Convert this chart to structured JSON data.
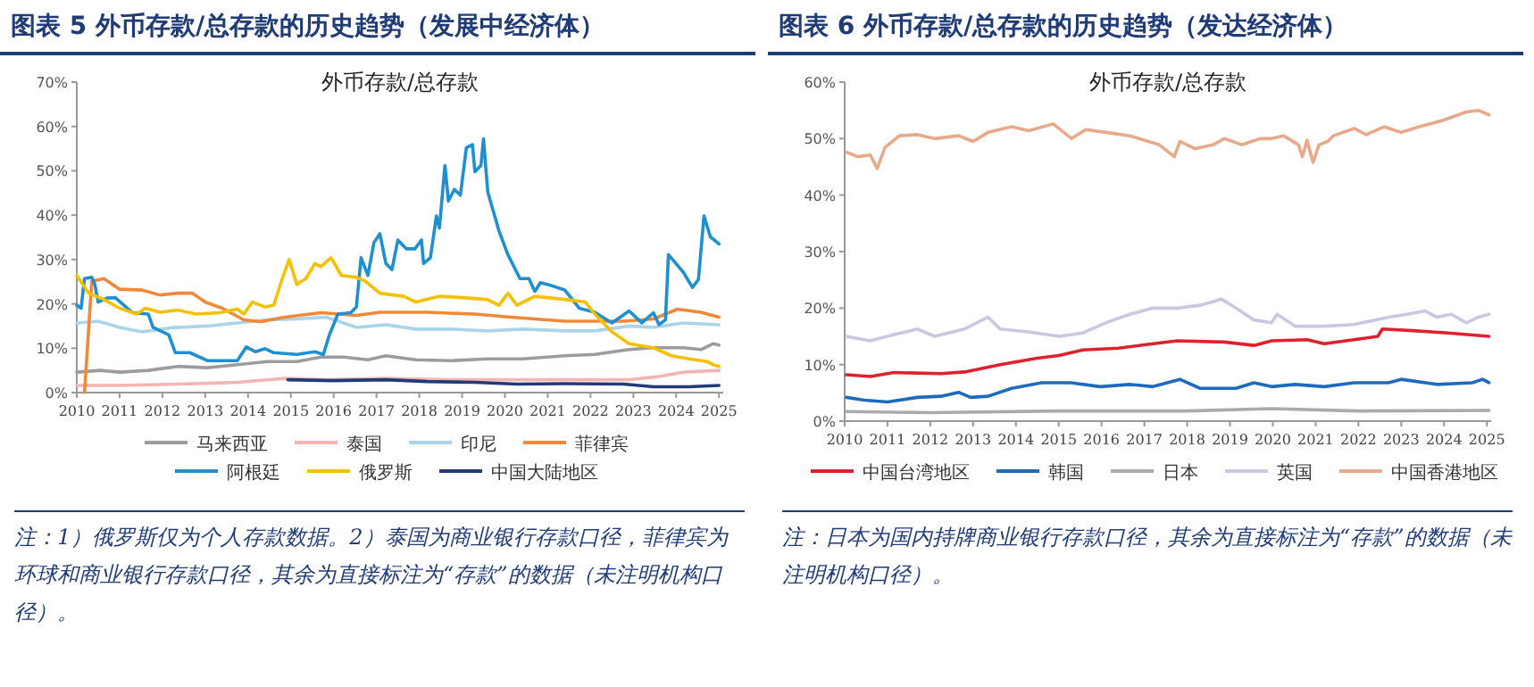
{
  "chart_data": [
    {
      "type": "line",
      "title": "图表 5   外币存款/总存款的历史趋势（发展中经济体）",
      "subtitle": "外币存款/总存款",
      "xlim": [
        2010,
        2025.1
      ],
      "xticks": [
        2010,
        2011,
        2012,
        2013,
        2014,
        2015,
        2016,
        2017,
        2018,
        2019,
        2020,
        2021,
        2022,
        2023,
        2024,
        2025
      ],
      "ylim": [
        0,
        70
      ],
      "yticks": [
        {
          "value": 0,
          "label": "0%"
        },
        {
          "value": 10,
          "label": "10%"
        },
        {
          "value": 20,
          "label": "20%"
        },
        {
          "value": 30,
          "label": "30%"
        },
        {
          "value": 40,
          "label": "40%"
        },
        {
          "value": 50,
          "label": "50%"
        },
        {
          "value": 60,
          "label": "60%"
        },
        {
          "value": 70,
          "label": "70%"
        }
      ],
      "legend": "bottom",
      "annotations": [
        "注：1）俄罗斯仅为个人存款数据。2）泰国为商业银行存款口径，菲律宾为环球和商业银行存款口径，其余为直接标注为“存款”的数据（未注明机构口径）。"
      ],
      "series": [
        {
          "name": "马来西亚",
          "color": "#9c9c9c",
          "x": [
            2010,
            2010.55,
            2011,
            2011.67,
            2012.36,
            2013.05,
            2013.75,
            2014.45,
            2015.14,
            2015.7,
            2016.25,
            2016.8,
            2017.22,
            2017.92,
            2018.75,
            2019.58,
            2020.42,
            2021.4,
            2022.1,
            2022.9,
            2023.47,
            2024.17,
            2024.58,
            2024.86,
            2025
          ],
          "values": [
            4.6,
            5,
            4.6,
            5,
            5.9,
            5.6,
            6.3,
            7,
            7,
            8,
            8,
            7.4,
            8.3,
            7.4,
            7.2,
            7.6,
            7.6,
            8.3,
            8.6,
            9.7,
            10.1,
            10.1,
            9.7,
            11,
            10.7
          ]
        },
        {
          "name": "泰国",
          "color": "#f4b4b4",
          "x": [
            2010,
            2011,
            2012.36,
            2013.75,
            2014.86,
            2015.83,
            2017.22,
            2018.6,
            2020,
            2021.4,
            2022.9,
            2023.6,
            2024.17,
            2025
          ],
          "values": [
            1.6,
            1.6,
            1.9,
            2.3,
            3.2,
            2.9,
            3.2,
            2.9,
            2.9,
            2.9,
            2.9,
            3.6,
            4.6,
            5
          ]
        },
        {
          "name": "印尼",
          "color": "#a9d4ea",
          "x": [
            2010,
            2010.5,
            2011,
            2011.53,
            2012.2,
            2013.05,
            2013.75,
            2014.45,
            2015.14,
            2015.83,
            2016.53,
            2017.22,
            2017.92,
            2018.75,
            2019.58,
            2020.42,
            2021.4,
            2022.1,
            2022.9,
            2023.47,
            2024.17,
            2025
          ],
          "values": [
            15.7,
            16.1,
            14.7,
            13.7,
            14.6,
            15,
            15.7,
            16.4,
            16.6,
            17,
            14.7,
            15.3,
            14.3,
            14.3,
            13.9,
            14.3,
            13.9,
            13.9,
            15,
            14.7,
            15.7,
            15.3
          ]
        },
        {
          "name": "菲律宾",
          "color": "#f0883a",
          "x": [
            2010.18,
            2010.35,
            2010.63,
            2011,
            2011.53,
            2011.94,
            2012.36,
            2012.7,
            2013,
            2013.4,
            2013.9,
            2014.3,
            2014.86,
            2015.7,
            2016.53,
            2017.08,
            2018.19,
            2019.3,
            2020.14,
            2021.4,
            2022.78,
            2023.47,
            2024.03,
            2024.58,
            2025
          ],
          "values": [
            0,
            25.1,
            25.7,
            23.3,
            23.1,
            22,
            22.4,
            22.4,
            20.4,
            19,
            16.4,
            16,
            17,
            18,
            17.4,
            18.1,
            18.1,
            17.7,
            17,
            16.1,
            16.1,
            16.6,
            18.8,
            18.1,
            17
          ]
        },
        {
          "name": "阿根廷",
          "color": "#1f8fd0",
          "x": [
            2010,
            2010.1,
            2010.18,
            2010.35,
            2010.42,
            2010.5,
            2010.7,
            2010.9,
            2011.1,
            2011.3,
            2011.67,
            2011.78,
            2012.15,
            2012.3,
            2012.64,
            2013.05,
            2013.75,
            2013.96,
            2014.17,
            2014.4,
            2014.6,
            2015.14,
            2015.56,
            2015.76,
            2015.9,
            2016.1,
            2016.4,
            2016.53,
            2016.64,
            2016.8,
            2016.94,
            2017.08,
            2017.22,
            2017.36,
            2017.5,
            2017.7,
            2017.9,
            2018.05,
            2018.1,
            2018.26,
            2018.4,
            2018.47,
            2018.6,
            2018.68,
            2018.82,
            2018.96,
            2019.1,
            2019.24,
            2019.3,
            2019.44,
            2019.5,
            2019.6,
            2019.86,
            2020.07,
            2020.35,
            2020.56,
            2020.7,
            2020.83,
            2021.1,
            2021.4,
            2021.74,
            2022.1,
            2022.5,
            2022.9,
            2023.2,
            2023.47,
            2023.6,
            2023.75,
            2023.82,
            2024.17,
            2024.38,
            2024.52,
            2024.65,
            2024.8,
            2025
          ],
          "values": [
            19.7,
            19,
            25.7,
            26,
            24.4,
            20.4,
            21.3,
            21.4,
            19.7,
            18,
            17.7,
            14.7,
            13,
            9,
            9,
            7.2,
            7.2,
            10.3,
            9.2,
            9.9,
            9,
            8.6,
            9.2,
            8.6,
            13,
            17.7,
            18,
            19.3,
            30.4,
            26.4,
            33.8,
            35.8,
            29.1,
            27.7,
            34.4,
            32.4,
            32.4,
            34.4,
            29.1,
            30.4,
            39.8,
            37.1,
            51.2,
            43.2,
            45.8,
            44.5,
            55.2,
            55.9,
            49.8,
            51.2,
            57.2,
            45.2,
            36.5,
            31.1,
            25.7,
            25.7,
            22.8,
            24.8,
            24.1,
            23.1,
            19,
            18.1,
            15.7,
            18.4,
            15.7,
            18,
            15.3,
            16.4,
            31.1,
            27.1,
            23.7,
            25.5,
            39.8,
            35.1,
            33.5
          ]
        },
        {
          "name": "俄罗斯",
          "color": "#f5c000",
          "x": [
            2010,
            2010.28,
            2010.63,
            2011,
            2011.4,
            2011.6,
            2011.94,
            2012.36,
            2012.78,
            2013.33,
            2013.75,
            2013.9,
            2014.1,
            2014.4,
            2014.6,
            2014.8,
            2014.96,
            2015.14,
            2015.35,
            2015.56,
            2015.7,
            2015.94,
            2016.18,
            2016.53,
            2016.74,
            2017.08,
            2017.64,
            2017.92,
            2018.47,
            2019.03,
            2019.58,
            2019.86,
            2020.07,
            2020.28,
            2020.7,
            2021.4,
            2021.88,
            2022.1,
            2022.5,
            2022.9,
            2023.47,
            2023.89,
            2024.3,
            2024.72,
            2024.86,
            2025
          ],
          "values": [
            26.4,
            22.4,
            21,
            19,
            17.7,
            19,
            18.1,
            18.6,
            17.7,
            18,
            18.8,
            17.7,
            20.4,
            19.3,
            19.7,
            25.7,
            30,
            24.4,
            25.7,
            29.1,
            28.4,
            30.4,
            26.4,
            26,
            25.1,
            22.4,
            21.7,
            20.4,
            21.7,
            21.4,
            21,
            19.7,
            22.4,
            19.7,
            21.7,
            21,
            20.4,
            17.7,
            13.7,
            11,
            10.1,
            8.3,
            7.6,
            7,
            6.3,
            5.9
          ]
        },
        {
          "name": "中国大陆地区",
          "color": "#1f3c77",
          "x": [
            2014.93,
            2015.97,
            2017.22,
            2018.19,
            2019.3,
            2020.28,
            2021.4,
            2022.78,
            2023.47,
            2024.3,
            2025
          ],
          "values": [
            2.9,
            2.7,
            2.9,
            2.5,
            2.3,
            1.9,
            2,
            1.9,
            1.3,
            1.3,
            1.6
          ]
        }
      ]
    },
    {
      "type": "line",
      "title": "图表 6   外币存款/总存款的历史趋势（发达经济体）",
      "subtitle": "外币存款/总存款",
      "xlim": [
        2010,
        2025.1
      ],
      "xticks": [
        2010,
        2011,
        2012,
        2013,
        2014,
        2015,
        2016,
        2017,
        2018,
        2019,
        2020,
        2021,
        2022,
        2023,
        2024,
        2025
      ],
      "ylim": [
        0,
        60
      ],
      "yticks": [
        {
          "value": 0,
          "label": "0%"
        },
        {
          "value": 10,
          "label": "10%"
        },
        {
          "value": 20,
          "label": "20%"
        },
        {
          "value": 30,
          "label": "30%"
        },
        {
          "value": 40,
          "label": "40%"
        },
        {
          "value": 50,
          "label": "50%"
        },
        {
          "value": 60,
          "label": "60%"
        }
      ],
      "legend": "bottom",
      "annotations": [
        "注：日本为国内持牌商业银行存款口径，其余为直接标注为“存款”的数据（未注明机构口径）。"
      ],
      "series": [
        {
          "name": "中国台湾地区",
          "color": "#e0202c",
          "x": [
            2010.04,
            2010.6,
            2011.15,
            2012.25,
            2012.8,
            2013.63,
            2014.46,
            2015,
            2015.56,
            2016.39,
            2017.2,
            2017.77,
            2018.87,
            2019.56,
            2019.97,
            2020.8,
            2021.2,
            2021.9,
            2022.45,
            2022.56,
            2023.28,
            2024.1,
            2025.05
          ],
          "values": [
            8.2,
            7.9,
            8.6,
            8.4,
            8.7,
            10,
            11.1,
            11.6,
            12.6,
            12.9,
            13.7,
            14.2,
            14,
            13.4,
            14.2,
            14.4,
            13.7,
            14.4,
            15,
            16.3,
            16,
            15.6,
            15
          ]
        },
        {
          "name": "韩国",
          "color": "#1e6bbd",
          "x": [
            2010.04,
            2010.46,
            2011,
            2011.7,
            2012.25,
            2012.66,
            2012.94,
            2013.35,
            2013.9,
            2014.6,
            2015.28,
            2015.97,
            2016.66,
            2017.2,
            2017.83,
            2018.3,
            2019.14,
            2019.56,
            2019.97,
            2020.52,
            2021.2,
            2021.9,
            2022.7,
            2023,
            2023.83,
            2024.66,
            2024.9,
            2025.05
          ],
          "values": [
            4.2,
            3.7,
            3.4,
            4.2,
            4.4,
            5.1,
            4.2,
            4.4,
            5.8,
            6.8,
            6.8,
            6.1,
            6.5,
            6.1,
            7.4,
            5.8,
            5.8,
            6.8,
            6.1,
            6.5,
            6.1,
            6.8,
            6.8,
            7.4,
            6.5,
            6.8,
            7.4,
            6.8
          ]
        },
        {
          "name": "日本",
          "color": "#aaaaaa",
          "x": [
            2010.04,
            2012,
            2015,
            2018,
            2019.97,
            2022,
            2025.05
          ],
          "values": [
            1.7,
            1.5,
            1.8,
            1.8,
            2.2,
            1.8,
            1.9
          ]
        },
        {
          "name": "英国",
          "color": "#c8c8e0",
          "x": [
            2010.04,
            2010.6,
            2011.15,
            2011.7,
            2012.1,
            2012.8,
            2013.35,
            2013.63,
            2014.3,
            2015,
            2015.56,
            2016.1,
            2016.66,
            2017.2,
            2017.77,
            2018.3,
            2018.8,
            2019.14,
            2019.56,
            2019.97,
            2020.1,
            2020.52,
            2021.2,
            2021.9,
            2022.7,
            2023.14,
            2023.56,
            2023.83,
            2024.17,
            2024.52,
            2024.8,
            2025.05
          ],
          "values": [
            15,
            14.2,
            15.3,
            16.3,
            15,
            16.3,
            18.4,
            16.3,
            15.8,
            15,
            15.6,
            17.4,
            18.9,
            20,
            20,
            20.5,
            21.6,
            20,
            17.9,
            17.4,
            18.9,
            16.8,
            16.8,
            17.1,
            18.4,
            18.9,
            19.5,
            18.4,
            18.9,
            17.4,
            18.4,
            18.9
          ]
        },
        {
          "name": "中国香港地区",
          "color": "#e8a98a",
          "x": [
            2010.04,
            2010.3,
            2010.6,
            2010.76,
            2010.94,
            2011.28,
            2011.7,
            2012.1,
            2012.66,
            2013,
            2013.35,
            2013.9,
            2014.3,
            2014.87,
            2015.3,
            2015.63,
            2016.1,
            2016.66,
            2017.35,
            2017.7,
            2017.83,
            2018.18,
            2018.6,
            2018.87,
            2019.28,
            2019.7,
            2019.97,
            2020.25,
            2020.6,
            2020.69,
            2020.8,
            2020.94,
            2021.08,
            2021.28,
            2021.42,
            2021.9,
            2022.18,
            2022.6,
            2023,
            2023.42,
            2023.97,
            2024.52,
            2024.8,
            2025.05
          ],
          "values": [
            47.6,
            46.8,
            47.1,
            44.7,
            48.4,
            50.5,
            50.7,
            50,
            50.5,
            49.5,
            51.1,
            52.1,
            51.4,
            52.6,
            50,
            51.6,
            51.1,
            50.5,
            48.9,
            46.8,
            49.5,
            48.2,
            48.9,
            50,
            48.9,
            50,
            50,
            50.5,
            48.9,
            46.8,
            49.7,
            45.8,
            48.9,
            49.5,
            50.5,
            51.8,
            50.7,
            52.1,
            51.1,
            52.1,
            53.2,
            54.7,
            55,
            54.2
          ]
        }
      ]
    }
  ]
}
